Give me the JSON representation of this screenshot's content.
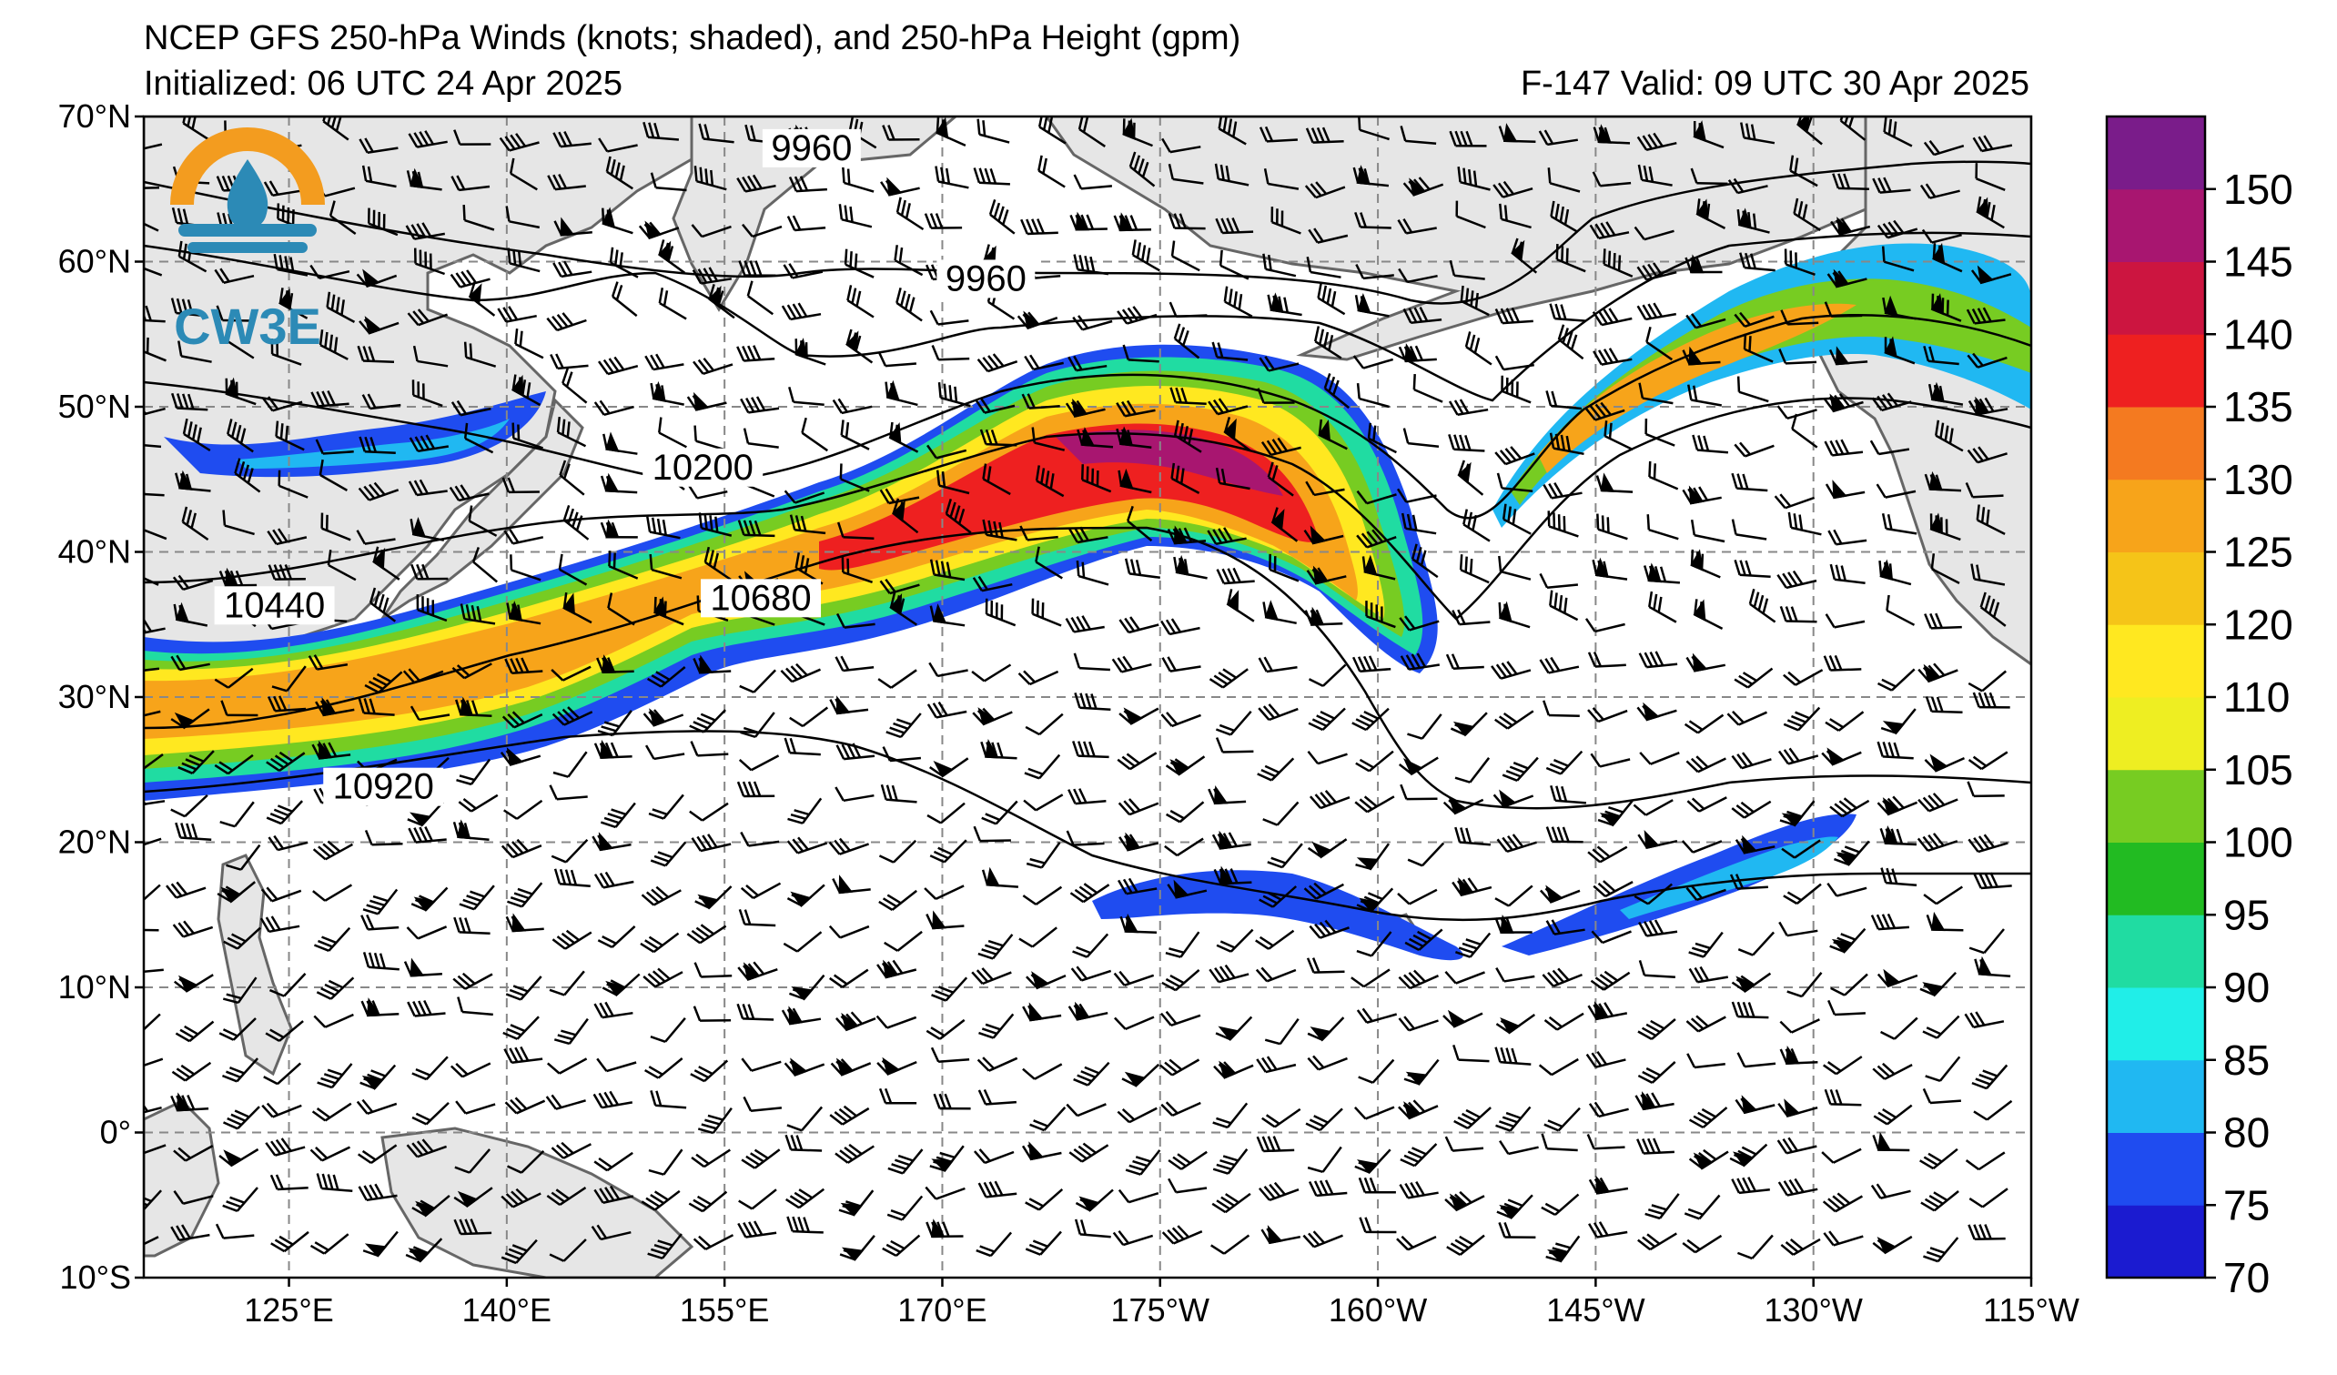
{
  "header": {
    "title": "NCEP GFS 250-hPa Winds (knots; shaded), and 250-hPa Height (gpm)",
    "initialized": "Initialized: 06 UTC 24 Apr 2025",
    "valid": "F-147  Valid: 09 UTC 30 Apr 2025"
  },
  "logo": {
    "text": "CW3E",
    "colors": {
      "arc": "#f39c1f",
      "drop": "#2c8ab6",
      "waves": "#2c8ab6",
      "text": "#2c8ab6"
    }
  },
  "axes": {
    "lat_ticks": [
      {
        "value": 70,
        "label": "70°N"
      },
      {
        "value": 60,
        "label": "60°N"
      },
      {
        "value": 50,
        "label": "50°N"
      },
      {
        "value": 40,
        "label": "40°N"
      },
      {
        "value": 30,
        "label": "30°N"
      },
      {
        "value": 20,
        "label": "20°N"
      },
      {
        "value": 10,
        "label": "10°N"
      },
      {
        "value": 0,
        "label": "0°"
      },
      {
        "value": -10,
        "label": "10°S"
      }
    ],
    "lon_ticks": [
      {
        "value": 125,
        "label": "125°E"
      },
      {
        "value": 140,
        "label": "140°E"
      },
      {
        "value": 155,
        "label": "155°E"
      },
      {
        "value": 170,
        "label": "170°E"
      },
      {
        "value": 185,
        "label": "175°W"
      },
      {
        "value": 200,
        "label": "160°W"
      },
      {
        "value": 215,
        "label": "145°W"
      },
      {
        "value": 230,
        "label": "130°W"
      },
      {
        "value": 245,
        "label": "115°W"
      }
    ],
    "lon_range": [
      115,
      245
    ],
    "lat_range": [
      -10,
      70
    ],
    "grid": true
  },
  "contour_labels": [
    {
      "text": "9960",
      "lon": 161,
      "lat": 67.5
    },
    {
      "text": "9960",
      "lon": 173,
      "lat": 58.5
    },
    {
      "text": "10200",
      "lon": 153.5,
      "lat": 45.5
    },
    {
      "text": "10440",
      "lon": 124,
      "lat": 36
    },
    {
      "text": "10680",
      "lon": 157.5,
      "lat": 36.5
    },
    {
      "text": "10920",
      "lon": 131.5,
      "lat": 23.5
    }
  ],
  "colorbar": {
    "ticks": [
      "70",
      "75",
      "80",
      "85",
      "90",
      "95",
      "100",
      "105",
      "110",
      "120",
      "125",
      "130",
      "135",
      "140",
      "145",
      "150"
    ],
    "colors": [
      "#1b1bd0",
      "#1f4cf0",
      "#20b8f2",
      "#20eee8",
      "#20dca2",
      "#22bb22",
      "#77cc22",
      "#eeee22",
      "#ffe820",
      "#f5c418",
      "#f7a41a",
      "#f47a20",
      "#ee2020",
      "#cc1540",
      "#a81670",
      "#7a1c8a"
    ]
  }
}
